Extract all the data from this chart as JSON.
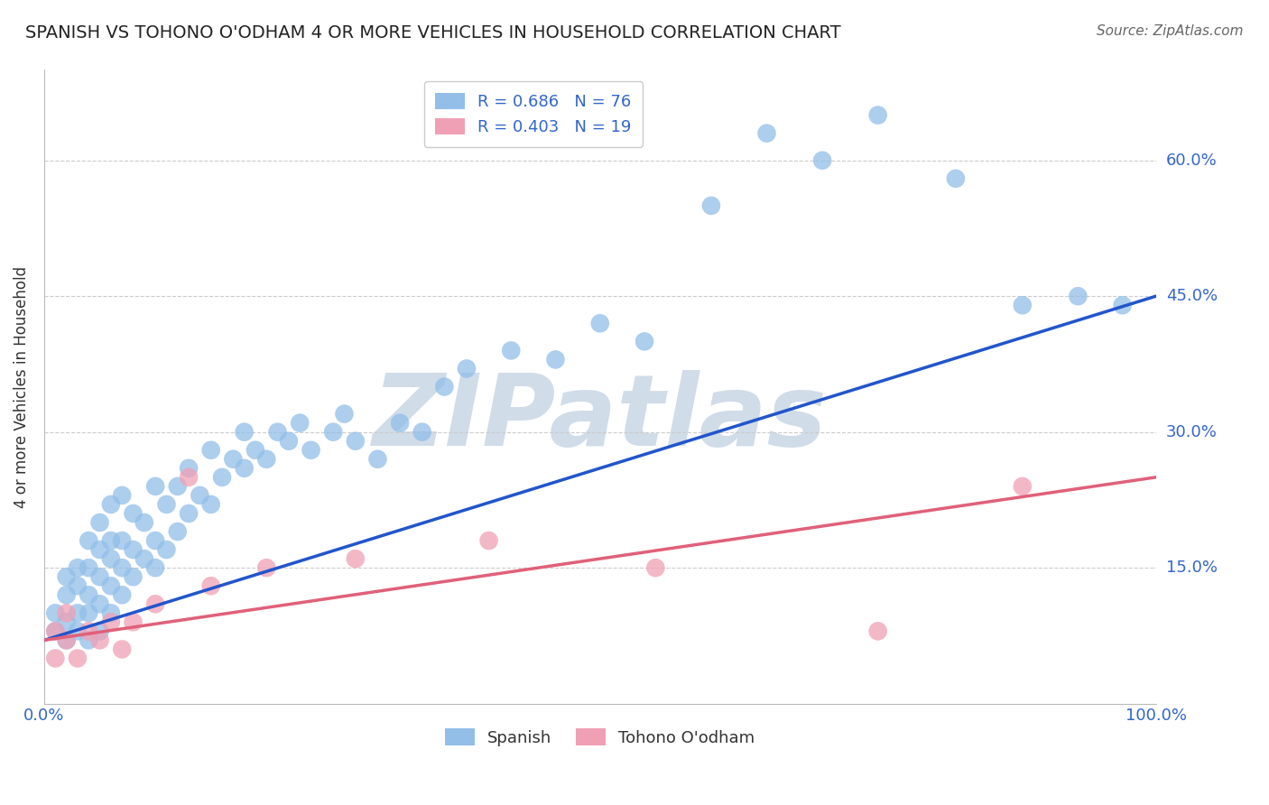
{
  "title": "SPANISH VS TOHONO O'ODHAM 4 OR MORE VEHICLES IN HOUSEHOLD CORRELATION CHART",
  "source": "Source: ZipAtlas.com",
  "ylabel": "4 or more Vehicles in Household",
  "xlim": [
    0,
    1.0
  ],
  "ylim": [
    0,
    0.7
  ],
  "xtick_positions": [
    0.0,
    0.2,
    0.4,
    0.6,
    0.8,
    1.0
  ],
  "xtick_labels": [
    "0.0%",
    "",
    "",
    "",
    "",
    "100.0%"
  ],
  "ytick_positions": [
    0.15,
    0.3,
    0.45,
    0.6
  ],
  "ytick_labels": [
    "15.0%",
    "30.0%",
    "45.0%",
    "60.0%"
  ],
  "R_spanish": 0.686,
  "N_spanish": 76,
  "R_tohono": 0.403,
  "N_tohono": 19,
  "spanish_color": "#92BEE8",
  "tohono_color": "#F0A0B5",
  "spanish_line_color": "#2255CC",
  "tohono_line_color": "#E0607A",
  "watermark": "ZIPatlas",
  "watermark_color": "#D0DCE8",
  "legend_color": "#3366CC",
  "background_color": "#FFFFFF",
  "grid_color": "#CCCCCC",
  "spanish_line_y0": 0.07,
  "spanish_line_y1": 0.45,
  "tohono_line_y0": 0.07,
  "tohono_line_y1": 0.25,
  "sp_x": [
    0.01,
    0.01,
    0.02,
    0.02,
    0.02,
    0.02,
    0.03,
    0.03,
    0.03,
    0.03,
    0.04,
    0.04,
    0.04,
    0.04,
    0.04,
    0.05,
    0.05,
    0.05,
    0.05,
    0.05,
    0.06,
    0.06,
    0.06,
    0.06,
    0.06,
    0.07,
    0.07,
    0.07,
    0.07,
    0.08,
    0.08,
    0.08,
    0.09,
    0.09,
    0.1,
    0.1,
    0.1,
    0.11,
    0.11,
    0.12,
    0.12,
    0.13,
    0.13,
    0.14,
    0.15,
    0.15,
    0.16,
    0.17,
    0.18,
    0.18,
    0.19,
    0.2,
    0.21,
    0.22,
    0.23,
    0.24,
    0.26,
    0.27,
    0.28,
    0.3,
    0.32,
    0.34,
    0.36,
    0.38,
    0.42,
    0.46,
    0.5,
    0.54,
    0.6,
    0.65,
    0.7,
    0.75,
    0.82,
    0.88,
    0.93,
    0.97
  ],
  "sp_y": [
    0.08,
    0.1,
    0.07,
    0.09,
    0.12,
    0.14,
    0.08,
    0.1,
    0.13,
    0.15,
    0.07,
    0.1,
    0.12,
    0.15,
    0.18,
    0.08,
    0.11,
    0.14,
    0.17,
    0.2,
    0.1,
    0.13,
    0.16,
    0.18,
    0.22,
    0.12,
    0.15,
    0.18,
    0.23,
    0.14,
    0.17,
    0.21,
    0.16,
    0.2,
    0.15,
    0.18,
    0.24,
    0.17,
    0.22,
    0.19,
    0.24,
    0.21,
    0.26,
    0.23,
    0.22,
    0.28,
    0.25,
    0.27,
    0.26,
    0.3,
    0.28,
    0.27,
    0.3,
    0.29,
    0.31,
    0.28,
    0.3,
    0.32,
    0.29,
    0.27,
    0.31,
    0.3,
    0.35,
    0.37,
    0.39,
    0.38,
    0.42,
    0.4,
    0.55,
    0.63,
    0.6,
    0.65,
    0.58,
    0.44,
    0.45,
    0.44
  ],
  "to_x": [
    0.01,
    0.01,
    0.02,
    0.02,
    0.03,
    0.04,
    0.05,
    0.06,
    0.07,
    0.08,
    0.1,
    0.13,
    0.15,
    0.2,
    0.28,
    0.4,
    0.55,
    0.75,
    0.88
  ],
  "to_y": [
    0.05,
    0.08,
    0.07,
    0.1,
    0.05,
    0.08,
    0.07,
    0.09,
    0.06,
    0.09,
    0.11,
    0.25,
    0.13,
    0.15,
    0.16,
    0.18,
    0.15,
    0.08,
    0.24
  ]
}
